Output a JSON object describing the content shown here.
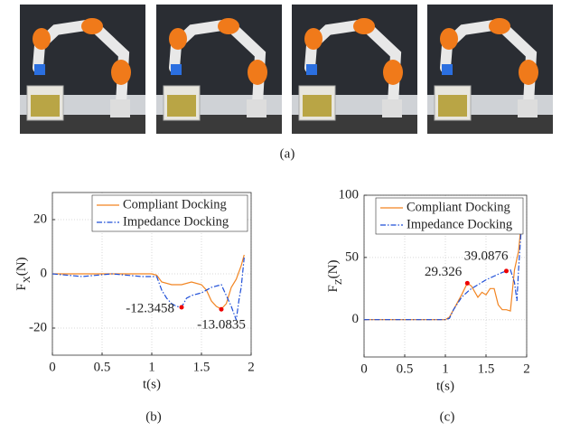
{
  "figure": {
    "caption": "(a)"
  },
  "chart_data": [
    {
      "type": "line",
      "caption": "(b)",
      "xlabel": "t(s)",
      "ylabel_parts": [
        "F",
        "X",
        "(N)"
      ],
      "xlim": [
        0,
        2
      ],
      "xticks": [
        0,
        0.5,
        1,
        1.5,
        2
      ],
      "ylim": [
        -30,
        30
      ],
      "yticks": [
        -20,
        0,
        20
      ],
      "grid": true,
      "legend": "upper right",
      "series": [
        {
          "name": "Compliant Docking",
          "color": "#f28522",
          "dash": "solid",
          "x": [
            0,
            0.5,
            1.0,
            1.05,
            1.1,
            1.2,
            1.3,
            1.4,
            1.5,
            1.55,
            1.6,
            1.65,
            1.7,
            1.75,
            1.8,
            1.85,
            1.9,
            1.93
          ],
          "values": [
            0,
            0,
            0,
            -0.5,
            -3,
            -4,
            -4,
            -3,
            -4,
            -6,
            -10,
            -12,
            -13,
            -11,
            -5,
            -2,
            3,
            7
          ]
        },
        {
          "name": "Impedance Docking",
          "color": "#1f4fd8",
          "dash": "dashdot",
          "x": [
            0,
            0.3,
            0.6,
            0.9,
            1.05,
            1.1,
            1.15,
            1.2,
            1.25,
            1.3,
            1.35,
            1.4,
            1.5,
            1.6,
            1.7,
            1.75,
            1.8,
            1.85,
            1.88,
            1.9,
            1.93
          ],
          "values": [
            0,
            -1,
            0,
            -1,
            -1,
            -6,
            -9,
            -11,
            -12,
            -12.3,
            -9,
            -8,
            -7,
            -5,
            -4,
            -8,
            -12,
            -17,
            -9,
            -5,
            6
          ]
        }
      ],
      "annotations": [
        {
          "x": 1.3,
          "y": -12.3458
        },
        {
          "x": 1.7,
          "y": -13.0835
        }
      ]
    },
    {
      "type": "line",
      "caption": "(c)",
      "xlabel": "t(s)",
      "ylabel_parts": [
        "F",
        "Z",
        "(N)"
      ],
      "xlim": [
        0,
        2
      ],
      "xticks": [
        0,
        0.5,
        1,
        1.5,
        2
      ],
      "ylim": [
        -30,
        100
      ],
      "yticks": [
        0,
        50,
        100
      ],
      "grid": true,
      "legend": "upper right",
      "series": [
        {
          "name": "Compliant Docking",
          "color": "#f28522",
          "dash": "solid",
          "x": [
            0,
            1,
            1.05,
            1.1,
            1.2,
            1.27,
            1.32,
            1.4,
            1.45,
            1.5,
            1.55,
            1.6,
            1.65,
            1.7,
            1.75,
            1.8,
            1.85,
            1.9,
            1.93
          ],
          "values": [
            0,
            0,
            2,
            8,
            20,
            29.326,
            27,
            18,
            22,
            20,
            25,
            25,
            12,
            8,
            8,
            7,
            40,
            55,
            75
          ]
        },
        {
          "name": "Impedance Docking",
          "color": "#1f4fd8",
          "dash": "dashdot",
          "x": [
            0,
            1,
            1.05,
            1.1,
            1.2,
            1.3,
            1.4,
            1.5,
            1.6,
            1.7,
            1.75,
            1.8,
            1.85,
            1.88,
            1.9,
            1.93
          ],
          "values": [
            0,
            0,
            1,
            8,
            18,
            24,
            28,
            32,
            35,
            38,
            39.0876,
            40,
            30,
            15,
            40,
            70
          ]
        }
      ],
      "annotations": [
        {
          "x": 1.27,
          "y": 29.326
        },
        {
          "x": 1.75,
          "y": 39.0876
        }
      ]
    }
  ]
}
